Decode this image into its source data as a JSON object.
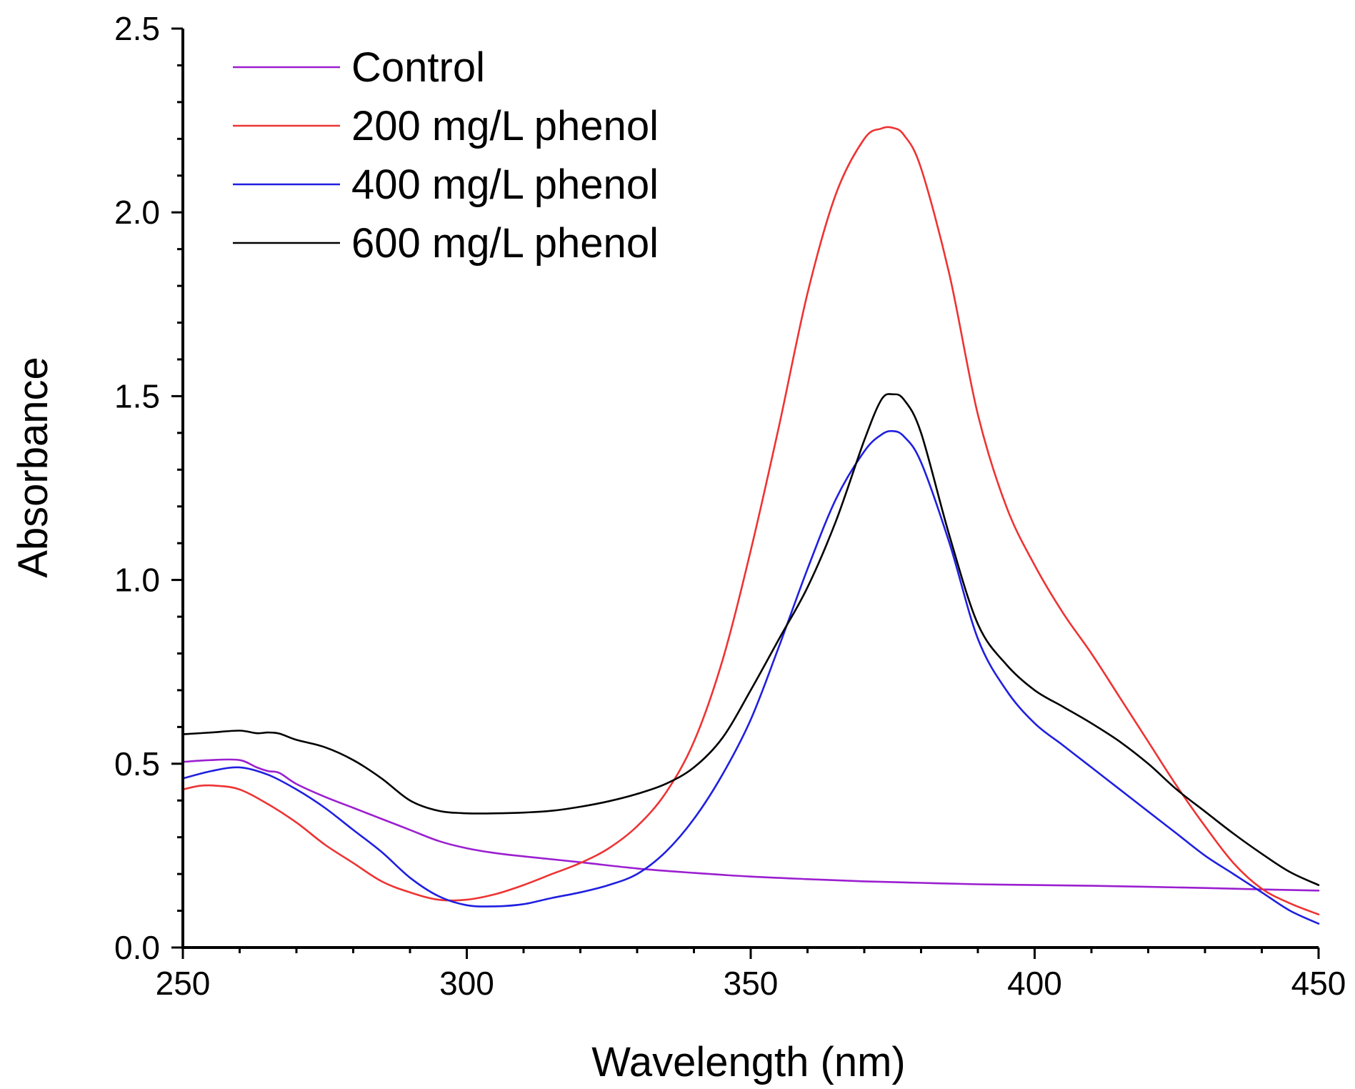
{
  "chart_data": {
    "type": "line",
    "title": "",
    "xlabel": "Wavelength (nm)",
    "ylabel": "Absorbance",
    "xlim": [
      250,
      450
    ],
    "ylim": [
      0.0,
      2.5
    ],
    "x_ticks": [
      "250",
      "300",
      "350",
      "400",
      "450"
    ],
    "y_ticks": [
      "0.0",
      "0.5",
      "1.0",
      "1.5",
      "2.0",
      "2.5"
    ],
    "x_tick_values": [
      250,
      300,
      350,
      400,
      450
    ],
    "y_tick_values": [
      0.0,
      0.5,
      1.0,
      1.5,
      2.0,
      2.5
    ],
    "legend_position": "top-left",
    "grid": false,
    "series": [
      {
        "name": "Control",
        "color": "#9b1fd0",
        "x": [
          250,
          255,
          260,
          263,
          265,
          267,
          270,
          275,
          280,
          285,
          290,
          295,
          300,
          305,
          310,
          320,
          330,
          340,
          350,
          360,
          370,
          380,
          390,
          400,
          410,
          420,
          430,
          440,
          450
        ],
        "y": [
          0.505,
          0.51,
          0.51,
          0.49,
          0.48,
          0.475,
          0.445,
          0.41,
          0.38,
          0.35,
          0.32,
          0.29,
          0.27,
          0.257,
          0.248,
          0.232,
          0.215,
          0.203,
          0.193,
          0.186,
          0.18,
          0.176,
          0.172,
          0.17,
          0.168,
          0.165,
          0.162,
          0.158,
          0.155
        ]
      },
      {
        "name": "200 mg/L phenol",
        "color": "#ee3333",
        "x": [
          250,
          253,
          256,
          260,
          265,
          270,
          275,
          280,
          285,
          290,
          295,
          300,
          305,
          310,
          315,
          320,
          325,
          330,
          335,
          340,
          345,
          350,
          355,
          360,
          365,
          370,
          373,
          375,
          377,
          380,
          385,
          390,
          395,
          400,
          405,
          410,
          415,
          420,
          425,
          430,
          435,
          440,
          445,
          450
        ],
        "y": [
          0.43,
          0.44,
          0.44,
          0.43,
          0.39,
          0.34,
          0.28,
          0.23,
          0.18,
          0.15,
          0.13,
          0.13,
          0.145,
          0.17,
          0.2,
          0.23,
          0.27,
          0.33,
          0.42,
          0.56,
          0.78,
          1.08,
          1.42,
          1.78,
          2.05,
          2.2,
          2.228,
          2.23,
          2.21,
          2.12,
          1.83,
          1.45,
          1.2,
          1.04,
          0.91,
          0.8,
          0.68,
          0.56,
          0.44,
          0.33,
          0.23,
          0.16,
          0.12,
          0.09
        ]
      },
      {
        "name": "400 mg/L phenol",
        "color": "#1f1fe0",
        "x": [
          250,
          255,
          260,
          265,
          270,
          275,
          280,
          285,
          290,
          295,
          300,
          305,
          310,
          315,
          320,
          325,
          330,
          335,
          340,
          345,
          350,
          355,
          360,
          365,
          370,
          373,
          375,
          377,
          380,
          385,
          390,
          395,
          400,
          405,
          410,
          415,
          420,
          425,
          430,
          435,
          440,
          445,
          450
        ],
        "y": [
          0.46,
          0.48,
          0.49,
          0.47,
          0.43,
          0.38,
          0.32,
          0.26,
          0.19,
          0.14,
          0.115,
          0.112,
          0.118,
          0.135,
          0.15,
          0.17,
          0.2,
          0.26,
          0.35,
          0.47,
          0.62,
          0.82,
          1.03,
          1.22,
          1.35,
          1.395,
          1.405,
          1.39,
          1.32,
          1.1,
          0.84,
          0.7,
          0.61,
          0.55,
          0.49,
          0.43,
          0.37,
          0.31,
          0.25,
          0.2,
          0.15,
          0.1,
          0.065
        ]
      },
      {
        "name": "600 mg/L phenol",
        "color": "#000000",
        "x": [
          250,
          255,
          260,
          263,
          265,
          267,
          270,
          275,
          280,
          285,
          290,
          295,
          300,
          305,
          310,
          315,
          320,
          325,
          330,
          335,
          340,
          345,
          350,
          355,
          360,
          365,
          370,
          373,
          375,
          377,
          380,
          385,
          390,
          395,
          400,
          405,
          410,
          415,
          420,
          425,
          430,
          435,
          440,
          445,
          450
        ],
        "y": [
          0.58,
          0.585,
          0.59,
          0.583,
          0.585,
          0.582,
          0.565,
          0.545,
          0.51,
          0.46,
          0.4,
          0.372,
          0.365,
          0.365,
          0.367,
          0.372,
          0.383,
          0.398,
          0.418,
          0.445,
          0.49,
          0.57,
          0.7,
          0.84,
          0.98,
          1.16,
          1.38,
          1.49,
          1.505,
          1.49,
          1.4,
          1.12,
          0.88,
          0.77,
          0.7,
          0.655,
          0.61,
          0.56,
          0.5,
          0.43,
          0.37,
          0.31,
          0.255,
          0.205,
          0.17
        ]
      }
    ]
  }
}
